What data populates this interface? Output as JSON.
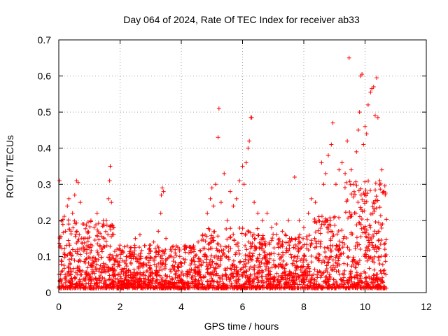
{
  "chart_data": {
    "type": "scatter",
    "title": "Day 064 of 2024, Rate Of TEC Index for receiver ab33",
    "xlabel": "GPS time / hours",
    "ylabel": "ROTI / TECUs",
    "xlim": [
      0,
      12
    ],
    "ylim": [
      0,
      0.7
    ],
    "xticks": [
      0,
      2,
      4,
      6,
      8,
      10,
      12
    ],
    "xtick_labels": [
      "0",
      "2",
      "4",
      "6",
      "8",
      "10",
      "12"
    ],
    "yticks": [
      0,
      0.1,
      0.2,
      0.3,
      0.4,
      0.5,
      0.6,
      0.7
    ],
    "ytick_labels": [
      "0",
      "0.1",
      "0.2",
      "0.3",
      "0.4",
      "0.5",
      "0.6",
      "0.7"
    ],
    "grid": true,
    "marker": "+",
    "marker_color": "#ff0000",
    "series": [
      {
        "name": "ROTI",
        "points": [
          [
            0.02,
            0.31
          ],
          [
            0.05,
            0.13
          ],
          [
            0.08,
            0.09
          ],
          [
            0.12,
            0.06
          ],
          [
            0.18,
            0.04
          ],
          [
            0.22,
            0.17
          ],
          [
            0.28,
            0.24
          ],
          [
            0.33,
            0.26
          ],
          [
            0.38,
            0.11
          ],
          [
            0.45,
            0.22
          ],
          [
            0.52,
            0.27
          ],
          [
            0.58,
            0.31
          ],
          [
            0.63,
            0.305
          ],
          [
            0.7,
            0.25
          ],
          [
            0.78,
            0.19
          ],
          [
            0.85,
            0.12
          ],
          [
            0.95,
            0.15
          ],
          [
            1.05,
            0.2
          ],
          [
            1.15,
            0.18
          ],
          [
            1.25,
            0.22
          ],
          [
            1.35,
            0.13
          ],
          [
            1.45,
            0.19
          ],
          [
            1.55,
            0.2
          ],
          [
            1.62,
            0.26
          ],
          [
            1.66,
            0.31
          ],
          [
            1.68,
            0.35
          ],
          [
            1.72,
            0.25
          ],
          [
            1.8,
            0.18
          ],
          [
            1.9,
            0.12
          ],
          [
            2.05,
            0.11
          ],
          [
            2.2,
            0.09
          ],
          [
            2.35,
            0.1
          ],
          [
            2.5,
            0.15
          ],
          [
            2.65,
            0.16
          ],
          [
            2.8,
            0.13
          ],
          [
            2.95,
            0.12
          ],
          [
            3.1,
            0.14
          ],
          [
            3.25,
            0.17
          ],
          [
            3.33,
            0.22
          ],
          [
            3.35,
            0.27
          ],
          [
            3.38,
            0.29
          ],
          [
            3.42,
            0.28
          ],
          [
            3.5,
            0.15
          ],
          [
            3.65,
            0.12
          ],
          [
            3.8,
            0.11
          ],
          [
            3.95,
            0.1
          ],
          [
            4.1,
            0.12
          ],
          [
            4.25,
            0.11
          ],
          [
            4.4,
            0.13
          ],
          [
            4.55,
            0.14
          ],
          [
            4.7,
            0.16
          ],
          [
            4.85,
            0.22
          ],
          [
            4.95,
            0.26
          ],
          [
            5.0,
            0.29
          ],
          [
            5.05,
            0.24
          ],
          [
            5.12,
            0.3
          ],
          [
            5.2,
            0.43
          ],
          [
            5.23,
            0.51
          ],
          [
            5.3,
            0.25
          ],
          [
            5.4,
            0.33
          ],
          [
            5.5,
            0.2
          ],
          [
            5.6,
            0.28
          ],
          [
            5.7,
            0.24
          ],
          [
            5.8,
            0.26
          ],
          [
            5.9,
            0.31
          ],
          [
            6.0,
            0.35
          ],
          [
            6.05,
            0.3
          ],
          [
            6.12,
            0.36
          ],
          [
            6.18,
            0.4
          ],
          [
            6.22,
            0.42
          ],
          [
            6.27,
            0.485
          ],
          [
            6.3,
            0.485
          ],
          [
            6.38,
            0.25
          ],
          [
            6.5,
            0.22
          ],
          [
            6.65,
            0.2
          ],
          [
            6.8,
            0.22
          ],
          [
            6.95,
            0.18
          ],
          [
            7.1,
            0.19
          ],
          [
            7.3,
            0.17
          ],
          [
            7.5,
            0.2
          ],
          [
            7.6,
            0.15
          ],
          [
            7.7,
            0.32
          ],
          [
            7.85,
            0.2
          ],
          [
            8.0,
            0.18
          ],
          [
            8.15,
            0.22
          ],
          [
            8.25,
            0.26
          ],
          [
            8.38,
            0.25
          ],
          [
            8.48,
            0.2
          ],
          [
            8.58,
            0.36
          ],
          [
            8.65,
            0.3
          ],
          [
            8.72,
            0.33
          ],
          [
            8.8,
            0.38
          ],
          [
            8.9,
            0.41
          ],
          [
            8.95,
            0.47
          ],
          [
            9.05,
            0.3
          ],
          [
            9.15,
            0.34
          ],
          [
            9.25,
            0.36
          ],
          [
            9.35,
            0.33
          ],
          [
            9.42,
            0.42
          ],
          [
            9.48,
            0.65
          ],
          [
            9.55,
            0.34
          ],
          [
            9.62,
            0.3
          ],
          [
            9.72,
            0.39
          ],
          [
            9.78,
            0.45
          ],
          [
            9.82,
            0.5
          ],
          [
            9.86,
            0.6
          ],
          [
            9.9,
            0.605
          ],
          [
            9.95,
            0.41
          ],
          [
            10.0,
            0.46
          ],
          [
            10.05,
            0.44
          ],
          [
            10.1,
            0.52
          ],
          [
            10.18,
            0.555
          ],
          [
            10.22,
            0.565
          ],
          [
            10.28,
            0.57
          ],
          [
            10.33,
            0.49
          ],
          [
            10.38,
            0.595
          ],
          [
            10.42,
            0.485
          ],
          [
            10.48,
            0.31
          ],
          [
            10.55,
            0.34
          ],
          [
            10.62,
            0.28
          ],
          [
            10.66,
            0.1
          ],
          [
            10.68,
            0.05
          ],
          [
            0.4,
            0.05
          ],
          [
            1.2,
            0.04
          ],
          [
            2.6,
            0.03
          ],
          [
            3.7,
            0.04
          ],
          [
            4.6,
            0.05
          ],
          [
            5.8,
            0.06
          ],
          [
            6.9,
            0.05
          ],
          [
            7.9,
            0.07
          ],
          [
            8.7,
            0.06
          ],
          [
            9.6,
            0.09
          ],
          [
            10.3,
            0.12
          ],
          [
            10.6,
            0.06
          ],
          [
            2.9,
            0.06
          ]
        ]
      }
    ]
  }
}
